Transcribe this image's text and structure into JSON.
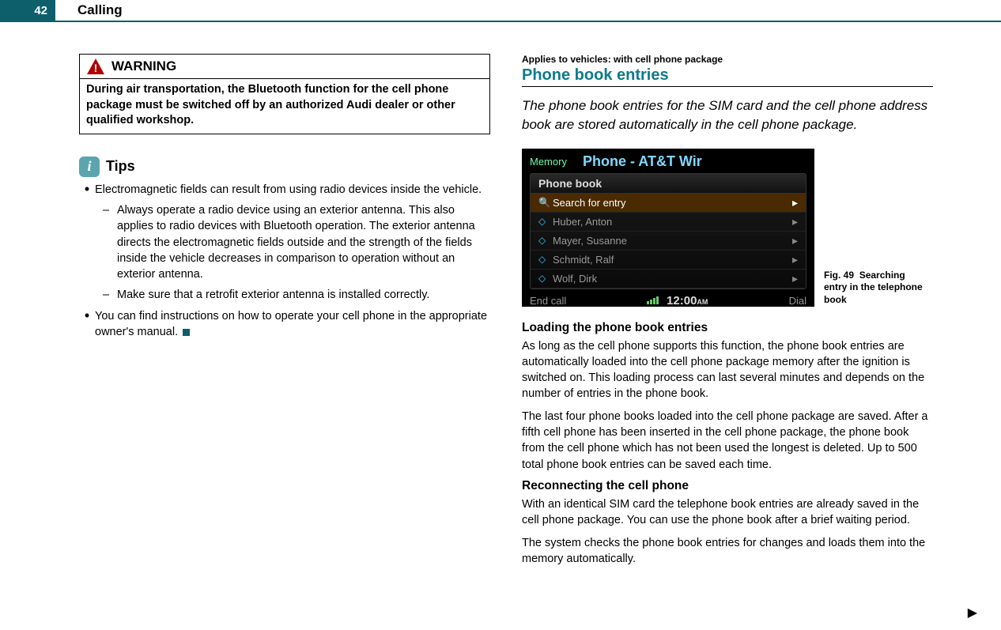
{
  "page": {
    "number": "42",
    "section": "Calling"
  },
  "warning": {
    "label": "WARNING",
    "body": "During air transportation, the Bluetooth function for the cell phone package must be switched off by an authorized Audi dealer or other qualified workshop.",
    "triangle_color": "#b00000"
  },
  "tips": {
    "label": "Tips",
    "bullet1": "Electromagnetic fields can result from using radio devices inside the vehicle.",
    "sub1": "Always operate a radio device using an exterior antenna. This also applies to radio devices with Bluetooth operation. The exterior antenna directs the electromagnetic fields outside and the strength of the fields inside the vehicle decreases in comparison to operation without an exterior antenna.",
    "sub2": "Make sure that a retrofit exterior antenna is installed correctly.",
    "bullet2": "You can find instructions on how to operate your cell phone in the appropriate owner's manual."
  },
  "right": {
    "applies": "Applies to vehicles: with cell phone package",
    "heading": "Phone book entries",
    "intro": "The phone book entries for the SIM card and the cell phone address book are stored automatically in the cell phone package.",
    "fig_caption_prefix": "Fig. 49",
    "fig_caption_text": "Searching entry in the telephone book",
    "loading_head": "Loading the phone book entries",
    "loading_p1": "As long as the cell phone supports this function, the phone book entries are automatically loaded into the cell phone package memory after the ignition is switched on. This loading process can last several minutes and depends on the number of entries in the phone book.",
    "loading_p2": "The last four phone books loaded into the cell phone package are saved. After a fifth cell phone has been inserted in the cell phone package, the phone book from the cell phone which has not been used the longest is deleted. Up to 500 total phone book entries can be saved each time.",
    "reconnect_head": "Reconnecting the cell phone",
    "reconnect_p1": "With an identical SIM card the telephone book entries are already saved in the cell phone package. You can use the phone book after a brief waiting period.",
    "reconnect_p2": "The system checks the phone book entries for changes and loads them into the memory automatically."
  },
  "mmi": {
    "memory": "Memory",
    "title": "Phone - AT&T Wir",
    "panel_head": "Phone book",
    "rows": [
      {
        "icon": "🔍",
        "label": "Search for entry",
        "selected": true
      },
      {
        "icon": "◇",
        "label": "Huber, Anton",
        "selected": false
      },
      {
        "icon": "◇",
        "label": "Mayer, Susanne",
        "selected": false
      },
      {
        "icon": "◇",
        "label": "Schmidt, Ralf",
        "selected": false
      },
      {
        "icon": "◇",
        "label": "Wolf, Dirk",
        "selected": false
      }
    ],
    "end_call": "End call",
    "time": "12:00",
    "time_suffix": "AM",
    "dial": "Dial"
  },
  "colors": {
    "brand": "#0d5f6b",
    "heading": "#0d7b8a"
  }
}
